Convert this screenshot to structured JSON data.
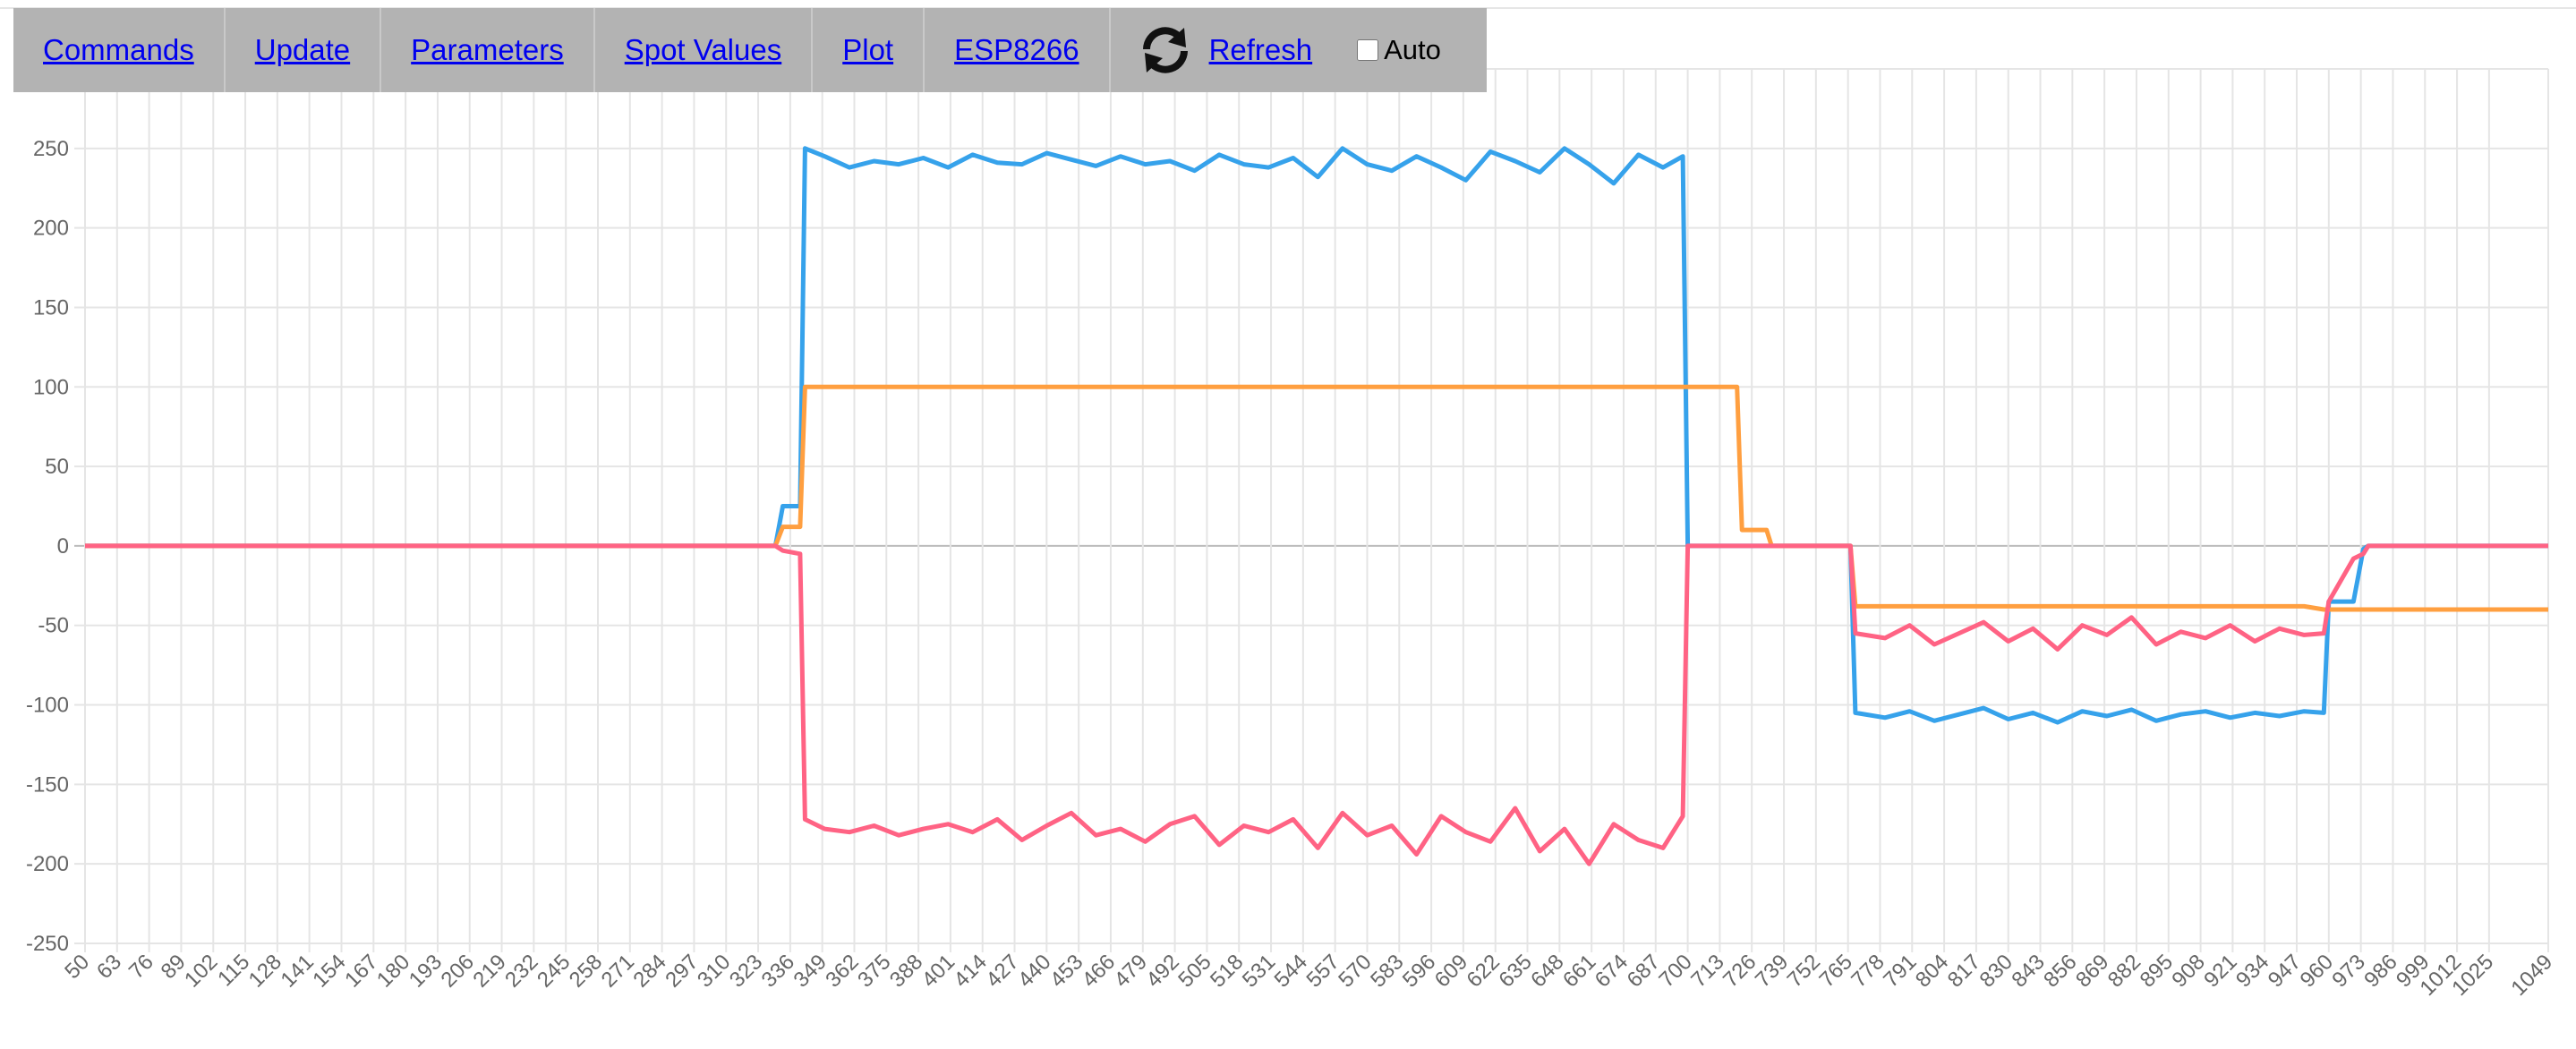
{
  "nav": {
    "items": [
      "Commands",
      "Update",
      "Parameters",
      "Spot Values",
      "Plot",
      "ESP8266"
    ],
    "refresh": "Refresh",
    "auto": "Auto"
  },
  "chart_data": {
    "type": "line",
    "x": [
      50,
      100,
      150,
      200,
      250,
      300,
      330,
      333,
      340,
      342,
      350,
      360,
      370,
      380,
      390,
      400,
      410,
      420,
      430,
      440,
      450,
      460,
      470,
      480,
      490,
      500,
      510,
      520,
      530,
      540,
      550,
      560,
      570,
      580,
      590,
      600,
      610,
      620,
      630,
      640,
      650,
      660,
      670,
      680,
      690,
      698,
      700,
      720,
      722,
      732,
      734,
      766,
      768,
      780,
      790,
      800,
      810,
      820,
      830,
      840,
      850,
      860,
      870,
      880,
      890,
      900,
      910,
      920,
      930,
      940,
      950,
      958,
      960,
      970,
      974,
      976,
      1000,
      1025,
      1049
    ],
    "series": [
      {
        "color": "#36a2eb",
        "values": [
          0,
          0,
          0,
          0,
          0,
          0,
          0,
          25,
          25,
          250,
          245,
          238,
          242,
          240,
          244,
          238,
          246,
          241,
          240,
          247,
          243,
          239,
          245,
          240,
          242,
          236,
          246,
          240,
          238,
          244,
          232,
          250,
          240,
          236,
          245,
          238,
          230,
          248,
          242,
          235,
          250,
          240,
          228,
          246,
          238,
          245,
          0,
          0,
          0,
          0,
          0,
          0,
          -105,
          -108,
          -104,
          -110,
          -106,
          -102,
          -109,
          -105,
          -111,
          -104,
          -107,
          -103,
          -110,
          -106,
          -104,
          -108,
          -105,
          -107,
          -104,
          -105,
          -35,
          -35,
          -2,
          0,
          0,
          0,
          0
        ]
      },
      {
        "color": "#ff9f40",
        "values": [
          0,
          0,
          0,
          0,
          0,
          0,
          0,
          12,
          12,
          100,
          100,
          100,
          100,
          100,
          100,
          100,
          100,
          100,
          100,
          100,
          100,
          100,
          100,
          100,
          100,
          100,
          100,
          100,
          100,
          100,
          100,
          100,
          100,
          100,
          100,
          100,
          100,
          100,
          100,
          100,
          100,
          100,
          100,
          100,
          100,
          100,
          100,
          100,
          10,
          10,
          0,
          0,
          -38,
          -38,
          -38,
          -38,
          -38,
          -38,
          -38,
          -38,
          -38,
          -38,
          -38,
          -38,
          -38,
          -38,
          -38,
          -38,
          -38,
          -38,
          -38,
          -40,
          -40,
          -40,
          -40,
          -40,
          -40,
          -40,
          -40
        ]
      },
      {
        "color": "#ff6384",
        "values": [
          0,
          0,
          0,
          0,
          0,
          0,
          0,
          -3,
          -5,
          -172,
          -178,
          -180,
          -176,
          -182,
          -178,
          -175,
          -180,
          -172,
          -185,
          -176,
          -168,
          -182,
          -178,
          -186,
          -175,
          -170,
          -188,
          -176,
          -180,
          -172,
          -190,
          -168,
          -182,
          -176,
          -194,
          -170,
          -180,
          -186,
          -165,
          -192,
          -178,
          -200,
          -175,
          -185,
          -190,
          -170,
          0,
          0,
          0,
          0,
          0,
          0,
          -55,
          -58,
          -50,
          -62,
          -55,
          -48,
          -60,
          -52,
          -65,
          -50,
          -56,
          -45,
          -62,
          -54,
          -58,
          -50,
          -60,
          -52,
          -56,
          -55,
          -35,
          -8,
          -5,
          0,
          0,
          0,
          0
        ]
      }
    ],
    "xlim": [
      50,
      1049
    ],
    "xticks": [
      50,
      63,
      76,
      89,
      102,
      115,
      128,
      141,
      154,
      167,
      180,
      193,
      206,
      219,
      232,
      245,
      258,
      271,
      284,
      297,
      310,
      323,
      336,
      349,
      362,
      375,
      388,
      401,
      414,
      427,
      440,
      453,
      466,
      479,
      492,
      505,
      518,
      531,
      544,
      557,
      570,
      583,
      596,
      609,
      622,
      635,
      648,
      661,
      674,
      687,
      700,
      713,
      726,
      739,
      752,
      765,
      778,
      791,
      804,
      817,
      830,
      843,
      856,
      869,
      882,
      895,
      908,
      921,
      934,
      947,
      960,
      973,
      986,
      999,
      1012,
      1025,
      1049
    ],
    "ylim": [
      -250,
      300
    ],
    "yticks": [
      -250,
      -200,
      -150,
      -100,
      -50,
      0,
      50,
      100,
      150,
      200,
      250
    ],
    "grid": true
  }
}
